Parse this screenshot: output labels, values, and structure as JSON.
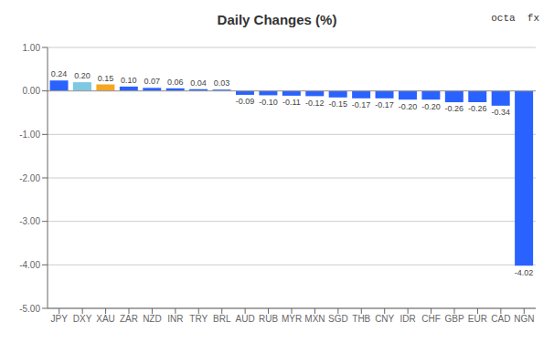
{
  "chart_data": {
    "type": "bar",
    "title": "Daily Changes (%)",
    "categories": [
      "JPY",
      "DXY",
      "XAU",
      "ZAR",
      "NZD",
      "INR",
      "TRY",
      "BRL",
      "AUD",
      "RUB",
      "MYR",
      "MXN",
      "SGD",
      "THB",
      "CNY",
      "IDR",
      "CHF",
      "GBP",
      "EUR",
      "CAD",
      "NGN"
    ],
    "values": [
      0.24,
      0.2,
      0.15,
      0.1,
      0.07,
      0.06,
      0.04,
      0.03,
      -0.09,
      -0.1,
      -0.11,
      -0.12,
      -0.15,
      -0.17,
      -0.17,
      -0.2,
      -0.2,
      -0.26,
      -0.26,
      -0.34,
      -4.02
    ],
    "value_labels": [
      "0.24",
      "0.20",
      "0.15",
      "0.10",
      "0.07",
      "0.06",
      "0.04",
      "0.03",
      "-0.09",
      "-0.10",
      "-0.11",
      "-0.12",
      "-0.15",
      "-0.17",
      "-0.17",
      "-0.20",
      "-0.20",
      "-0.26",
      "-0.26",
      "-0.34",
      "-4.02"
    ],
    "data_labels": true,
    "colors": [
      "#2962ff",
      "#7ec8e3",
      "#f5a623",
      "#2962ff",
      "#2962ff",
      "#2962ff",
      "#2962ff",
      "#2962ff",
      "#2962ff",
      "#2962ff",
      "#2962ff",
      "#2962ff",
      "#2962ff",
      "#2962ff",
      "#2962ff",
      "#2962ff",
      "#2962ff",
      "#2962ff",
      "#2962ff",
      "#2962ff",
      "#2962ff"
    ],
    "ylim": [
      -5.0,
      1.0
    ],
    "yticks": [
      {
        "value": 1.0,
        "label": "1.00"
      },
      {
        "value": 0.0,
        "label": "0.00"
      },
      {
        "value": -1.0,
        "label": "-1.00"
      },
      {
        "value": -2.0,
        "label": "-2.00"
      },
      {
        "value": -3.0,
        "label": "-3.00"
      },
      {
        "value": -4.0,
        "label": "-4.00"
      },
      {
        "value": -5.0,
        "label": "-5.00"
      }
    ],
    "grid": true,
    "annotations": [
      "octa  fx"
    ]
  }
}
